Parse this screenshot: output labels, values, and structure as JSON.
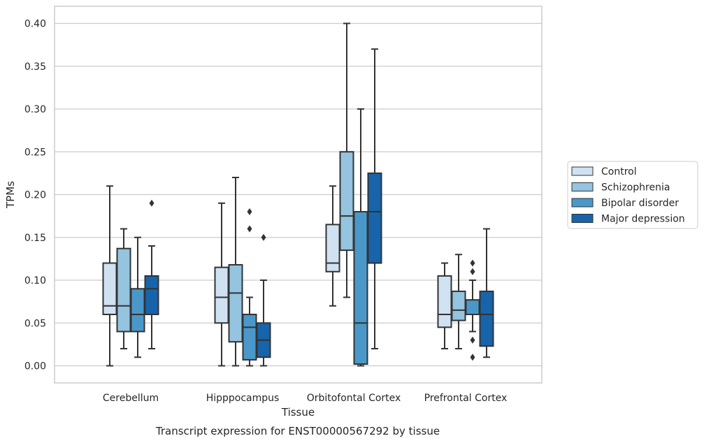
{
  "chart_data": {
    "type": "boxplot",
    "xlabel": "Tissue",
    "ylabel": "TPMs",
    "caption": "Transcript expression for ENST00000567292 by tissue",
    "ylim": [
      -0.02,
      0.42
    ],
    "yticks": [
      0.0,
      0.05,
      0.1,
      0.15,
      0.2,
      0.25,
      0.3,
      0.35,
      0.4
    ],
    "ytick_labels": [
      "0.00",
      "0.05",
      "0.10",
      "0.15",
      "0.20",
      "0.25",
      "0.30",
      "0.35",
      "0.40"
    ],
    "grid": "horizontal",
    "legend_position": "right",
    "categories": [
      "Cerebellum",
      "Hipppocampus",
      "Orbitofontal Cortex",
      "Prefrontal Cortex"
    ],
    "series": [
      {
        "name": "Control",
        "color": "#d0e1f2",
        "boxes": [
          {
            "whislo": 0.0,
            "q1": 0.06,
            "med": 0.07,
            "q3": 0.12,
            "whishi": 0.21,
            "fliers": []
          },
          {
            "whislo": 0.0,
            "q1": 0.05,
            "med": 0.08,
            "q3": 0.115,
            "whishi": 0.19,
            "fliers": []
          },
          {
            "whislo": 0.07,
            "q1": 0.11,
            "med": 0.12,
            "q3": 0.165,
            "whishi": 0.21,
            "fliers": []
          },
          {
            "whislo": 0.02,
            "q1": 0.045,
            "med": 0.06,
            "q3": 0.105,
            "whishi": 0.12,
            "fliers": []
          }
        ]
      },
      {
        "name": "Schizophrenia",
        "color": "#94c4df",
        "boxes": [
          {
            "whislo": 0.02,
            "q1": 0.04,
            "med": 0.07,
            "q3": 0.137,
            "whishi": 0.16,
            "fliers": []
          },
          {
            "whislo": 0.0,
            "q1": 0.028,
            "med": 0.085,
            "q3": 0.118,
            "whishi": 0.22,
            "fliers": []
          },
          {
            "whislo": 0.08,
            "q1": 0.135,
            "med": 0.175,
            "q3": 0.25,
            "whishi": 0.4,
            "fliers": []
          },
          {
            "whislo": 0.02,
            "q1": 0.053,
            "med": 0.065,
            "q3": 0.087,
            "whishi": 0.13,
            "fliers": []
          }
        ]
      },
      {
        "name": "Bipolar disorder",
        "color": "#4a98c9",
        "boxes": [
          {
            "whislo": 0.01,
            "q1": 0.04,
            "med": 0.06,
            "q3": 0.09,
            "whishi": 0.15,
            "fliers": []
          },
          {
            "whislo": 0.0,
            "q1": 0.007,
            "med": 0.045,
            "q3": 0.06,
            "whishi": 0.08,
            "fliers": [
              0.16,
              0.18
            ]
          },
          {
            "whislo": 0.0,
            "q1": 0.002,
            "med": 0.05,
            "q3": 0.18,
            "whishi": 0.3,
            "fliers": []
          },
          {
            "whislo": 0.04,
            "q1": 0.06,
            "med": 0.06,
            "q3": 0.077,
            "whishi": 0.1,
            "fliers": [
              0.01,
              0.03,
              0.11,
              0.12
            ]
          }
        ]
      },
      {
        "name": "Major depression",
        "color": "#1764ab",
        "boxes": [
          {
            "whislo": 0.02,
            "q1": 0.06,
            "med": 0.09,
            "q3": 0.105,
            "whishi": 0.14,
            "fliers": [
              0.19
            ]
          },
          {
            "whislo": 0.0,
            "q1": 0.01,
            "med": 0.03,
            "q3": 0.05,
            "whishi": 0.1,
            "fliers": [
              0.15
            ]
          },
          {
            "whislo": 0.02,
            "q1": 0.12,
            "med": 0.18,
            "q3": 0.225,
            "whishi": 0.37,
            "fliers": []
          },
          {
            "whislo": 0.01,
            "q1": 0.023,
            "med": 0.06,
            "q3": 0.087,
            "whishi": 0.16,
            "fliers": []
          }
        ]
      }
    ]
  }
}
